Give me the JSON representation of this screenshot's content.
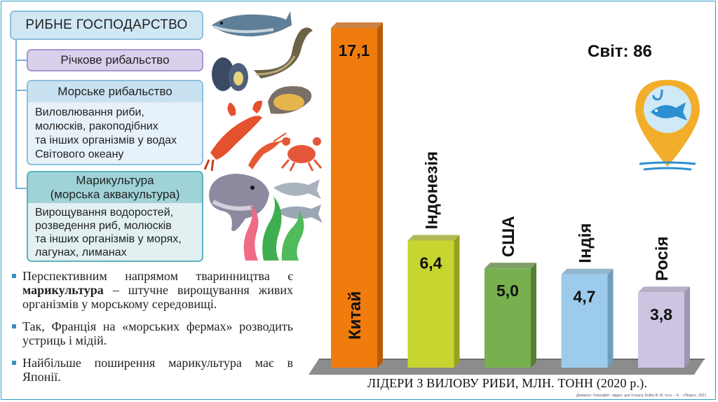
{
  "scheme": {
    "title": "РИБНЕ ГОСПОДАРСТВО",
    "river": "Річкове рибальство",
    "sea_title": "Морське рибальство",
    "sea_text": [
      "Виловлювання риби,",
      "молюсків, ракоподібних",
      "та інших організмів у водах",
      "Світового океану"
    ],
    "mari_title": [
      "Марикультура",
      "(морська аквакультура)"
    ],
    "mari_text": [
      "Вирощування водоростей,",
      "розведення риб, молюсків",
      "та інших організмів у морях,",
      "лагунах, лиманах"
    ]
  },
  "bullets": {
    "b1_pre": "Перспективним напрямом тваринництва є ",
    "b1_bold": "марикультура",
    "b1_post": " – штучне вирощування живих організмів у морському середовищі.",
    "b2": "Так, Франція на «морських фермах» розводить устриць і мідій.",
    "b3": "Найбільше поширення марикультура має в Японії."
  },
  "chart_data": {
    "type": "bar",
    "title": "ЛІДЕРИ З ВИЛОВУ РИБИ, МЛН. ТОНН (2020 р.).",
    "categories": [
      "Китай",
      "Індонезія",
      "США",
      "Індія",
      "Росія"
    ],
    "values": [
      17.1,
      6.4,
      5.0,
      4.7,
      3.8
    ],
    "value_labels": [
      "17,1",
      "6,4",
      "5,0",
      "4,7",
      "3,8"
    ],
    "colors": [
      "#f07c0e",
      "#c7d530",
      "#77b04e",
      "#9ccbeb",
      "#cdc4e2"
    ],
    "side_colors": [
      "#b85a06",
      "#97a21c",
      "#557f37",
      "#6f9dbf",
      "#9d94b6"
    ],
    "total": "Світ: 86",
    "ylim": [
      0,
      17.1
    ],
    "grid": false,
    "legend": "none"
  },
  "source": "Джерело: Географія : підруч. для 9 класу, Бойко В. М. та ін. – К. : «Перун», 2021",
  "icons": [
    "fish-illustrations",
    "map-pin-fish-icon"
  ]
}
